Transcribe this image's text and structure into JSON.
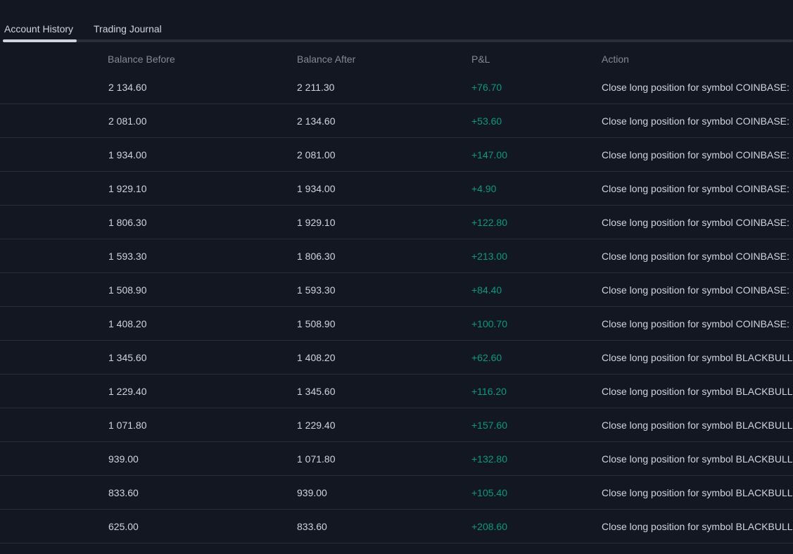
{
  "tabs": [
    {
      "label": "Account History",
      "active": true
    },
    {
      "label": "Trading Journal",
      "active": false
    }
  ],
  "colors": {
    "background": "#131722",
    "text": "#d1d4dc",
    "header_text": "#868993",
    "positive": "#089981",
    "divider": "#2a2e39"
  },
  "table": {
    "columns": [
      "Balance Before",
      "Balance After",
      "P&L",
      "Action"
    ],
    "rows": [
      {
        "before": "2 134.60",
        "after": "2 211.30",
        "pnl": "+76.70",
        "action": "Close long position for symbol COINBASE:"
      },
      {
        "before": "2 081.00",
        "after": "2 134.60",
        "pnl": "+53.60",
        "action": "Close long position for symbol COINBASE:"
      },
      {
        "before": "1 934.00",
        "after": "2 081.00",
        "pnl": "+147.00",
        "action": "Close long position for symbol COINBASE:"
      },
      {
        "before": "1 929.10",
        "after": "1 934.00",
        "pnl": "+4.90",
        "action": "Close long position for symbol COINBASE:"
      },
      {
        "before": "1 806.30",
        "after": "1 929.10",
        "pnl": "+122.80",
        "action": "Close long position for symbol COINBASE:"
      },
      {
        "before": "1 593.30",
        "after": "1 806.30",
        "pnl": "+213.00",
        "action": "Close long position for symbol COINBASE:"
      },
      {
        "before": "1 508.90",
        "after": "1 593.30",
        "pnl": "+84.40",
        "action": "Close long position for symbol COINBASE:"
      },
      {
        "before": "1 408.20",
        "after": "1 508.90",
        "pnl": "+100.70",
        "action": "Close long position for symbol COINBASE:"
      },
      {
        "before": "1 345.60",
        "after": "1 408.20",
        "pnl": "+62.60",
        "action": "Close long position for symbol BLACKBULL"
      },
      {
        "before": "1 229.40",
        "after": "1 345.60",
        "pnl": "+116.20",
        "action": "Close long position for symbol BLACKBULL"
      },
      {
        "before": "1 071.80",
        "after": "1 229.40",
        "pnl": "+157.60",
        "action": "Close long position for symbol BLACKBULL"
      },
      {
        "before": "939.00",
        "after": "1 071.80",
        "pnl": "+132.80",
        "action": "Close long position for symbol BLACKBULL"
      },
      {
        "before": "833.60",
        "after": "939.00",
        "pnl": "+105.40",
        "action": "Close long position for symbol BLACKBULL"
      },
      {
        "before": "625.00",
        "after": "833.60",
        "pnl": "+208.60",
        "action": "Close long position for symbol BLACKBULL"
      }
    ]
  }
}
